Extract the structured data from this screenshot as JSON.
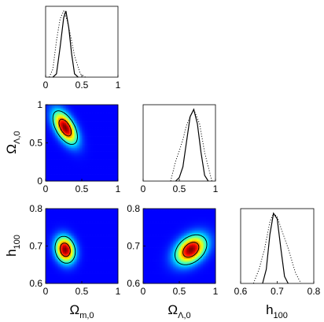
{
  "chart_data": {
    "type": "triangle-posterior",
    "colormap": [
      "#00007f",
      "#0000ff",
      "#00ffff",
      "#ffff00",
      "#ff0000",
      "#7f0000"
    ],
    "parameters": [
      {
        "key": "om",
        "label": "Ω",
        "sub": "m,0",
        "range": [
          0,
          1
        ],
        "ticks": [
          0,
          0.5,
          1
        ],
        "tick_labels": [
          "0",
          "0.5",
          "1"
        ]
      },
      {
        "key": "ol",
        "label": "Ω",
        "sub": "Λ,0",
        "range": [
          0,
          1
        ],
        "ticks": [
          0,
          0.5,
          1
        ],
        "tick_labels": [
          "0",
          "0.5",
          "1"
        ]
      },
      {
        "key": "h",
        "label": "h",
        "sub": "100",
        "range": [
          0.6,
          0.8
        ],
        "ticks": [
          0.6,
          0.7,
          0.8
        ],
        "tick_labels": [
          "0.6",
          "0.7",
          "0.8"
        ]
      }
    ],
    "marginals": [
      {
        "param": "om",
        "solid": {
          "x": [
            0.1,
            0.15,
            0.2,
            0.25,
            0.28,
            0.32,
            0.36,
            0.4,
            0.45
          ],
          "y": [
            0,
            0.05,
            0.45,
            0.9,
            1.0,
            0.75,
            0.35,
            0.05,
            0
          ]
        },
        "dotted": {
          "x": [
            0.05,
            0.1,
            0.15,
            0.2,
            0.25,
            0.3,
            0.35,
            0.4,
            0.48,
            0.55
          ],
          "y": [
            0,
            0.12,
            0.55,
            0.88,
            1.0,
            0.85,
            0.6,
            0.32,
            0.05,
            0
          ]
        }
      },
      {
        "param": "ol",
        "solid": {
          "x": [
            0.45,
            0.5,
            0.55,
            0.6,
            0.65,
            0.7,
            0.75,
            0.8,
            0.85,
            0.9
          ],
          "y": [
            0,
            0.05,
            0.2,
            0.55,
            0.9,
            1.0,
            0.8,
            0.4,
            0.08,
            0
          ]
        },
        "dotted": {
          "x": [
            0.38,
            0.45,
            0.5,
            0.55,
            0.6,
            0.65,
            0.7,
            0.78,
            0.85,
            0.95
          ],
          "y": [
            0,
            0.28,
            0.42,
            0.58,
            0.78,
            0.9,
            1.0,
            0.8,
            0.4,
            0
          ]
        }
      },
      {
        "param": "h",
        "solid": {
          "x": [
            0.66,
            0.67,
            0.68,
            0.69,
            0.7,
            0.71,
            0.72,
            0.73
          ],
          "y": [
            0,
            0.2,
            0.7,
            1.0,
            0.92,
            0.5,
            0.1,
            0
          ]
        },
        "dotted": {
          "x": [
            0.635,
            0.65,
            0.665,
            0.68,
            0.69,
            0.7,
            0.715,
            0.73,
            0.75,
            0.765
          ],
          "y": [
            0,
            0.2,
            0.48,
            0.88,
            1.0,
            0.95,
            0.72,
            0.5,
            0.15,
            0
          ]
        }
      }
    ],
    "joints": [
      {
        "x": "om",
        "y": "ol",
        "center": [
          0.27,
          0.7
        ],
        "sigma": [
          0.085,
          0.11
        ],
        "rho": -0.55,
        "contours_sigma": [
          1,
          2
        ]
      },
      {
        "x": "om",
        "y": "h",
        "center": [
          0.27,
          0.69
        ],
        "sigma": [
          0.07,
          0.018
        ],
        "rho": -0.15,
        "contours_sigma": [
          1,
          2
        ]
      },
      {
        "x": "ol",
        "y": "h",
        "center": [
          0.66,
          0.69
        ],
        "sigma": [
          0.11,
          0.02
        ],
        "rho": 0.35,
        "contours_sigma": [
          1,
          2
        ]
      }
    ]
  }
}
